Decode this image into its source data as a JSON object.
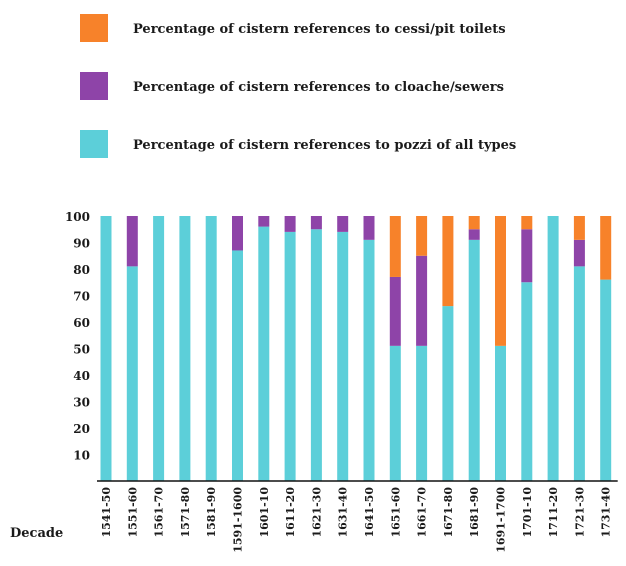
{
  "chart_data": {
    "type": "bar",
    "stacked": true,
    "xlabel": "Decade",
    "ylabel": "",
    "ylim": [
      0,
      100
    ],
    "yticks": [
      10,
      20,
      30,
      40,
      50,
      60,
      70,
      80,
      90,
      100
    ],
    "grid": false,
    "legend_position": "top-left",
    "categories": [
      "1541-50",
      "1551-60",
      "1561-70",
      "1571-80",
      "1581-90",
      "1591-1600",
      "1601-10",
      "1611-20",
      "1621-30",
      "1631-40",
      "1641-50",
      "1651-60",
      "1661-70",
      "1671-80",
      "1681-90",
      "1691-1700",
      "1701-10",
      "1711-20",
      "1721-30",
      "1731-40"
    ],
    "series": [
      {
        "name": "Percentage of cistern references to pozzi of all types",
        "color": "#5ccfd9",
        "values": [
          100,
          81,
          100,
          100,
          100,
          87,
          96,
          94,
          95,
          94,
          91,
          51,
          51,
          66,
          91,
          51,
          75,
          100,
          81,
          76
        ]
      },
      {
        "name": "Percentage of cistern references to cloache/sewers",
        "color": "#8e44a8",
        "values": [
          0,
          19,
          0,
          0,
          0,
          13,
          4,
          6,
          5,
          6,
          9,
          26,
          34,
          0,
          4,
          0,
          20,
          0,
          10,
          0
        ]
      },
      {
        "name": "Percentage of cistern references to cessi/pit toilets",
        "color": "#f7822a",
        "values": [
          0,
          0,
          0,
          0,
          0,
          0,
          0,
          0,
          0,
          0,
          0,
          23,
          15,
          34,
          5,
          49,
          5,
          0,
          9,
          24
        ]
      }
    ]
  }
}
